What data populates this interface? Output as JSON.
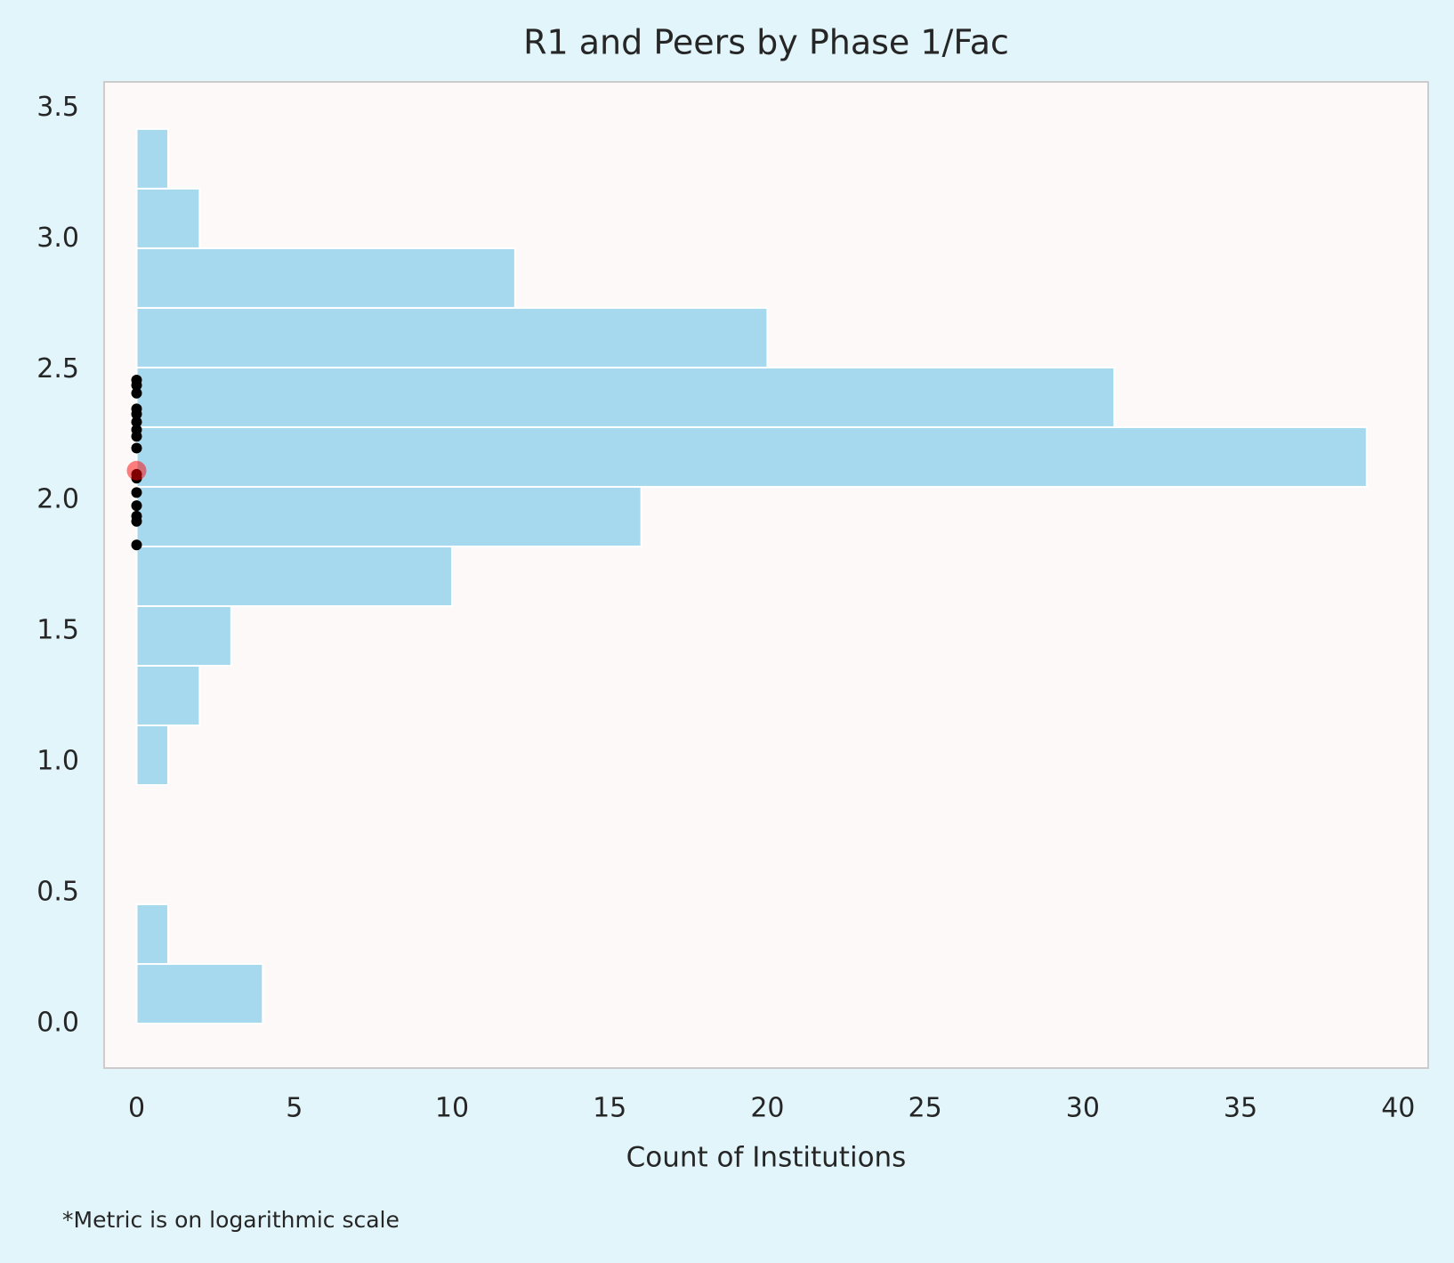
{
  "chart_data": {
    "type": "histogram",
    "orientation": "horizontal",
    "title": "R1 and Peers by Phase 1/Fac",
    "xlabel": "Count of Institutions",
    "footnote": "*Metric is on logarithmic scale",
    "bins": [
      0,
      0.228,
      0.456,
      0.684,
      0.912,
      1.14,
      1.368,
      1.596,
      1.824,
      2.052,
      2.28,
      2.508,
      2.736,
      2.964,
      3.192,
      3.42
    ],
    "counts": [
      4,
      1,
      0,
      0,
      1,
      2,
      3,
      10,
      16,
      39,
      31,
      20,
      12,
      2,
      1
    ],
    "color": "#a6d9ee",
    "points": {
      "x": [
        0,
        0,
        0,
        0,
        0,
        0,
        0,
        0,
        0,
        0,
        0,
        0,
        0,
        0,
        0,
        0
      ],
      "y": [
        2.46,
        2.44,
        2.41,
        2.35,
        2.33,
        2.3,
        2.27,
        2.245,
        2.2,
        2.1,
        2.085,
        2.03,
        1.98,
        1.94,
        1.92,
        1.83
      ],
      "color": "#000000"
    },
    "highlight": {
      "x": 0,
      "y": 2.114,
      "color": "#ff0000"
    },
    "xlim": [
      -1.03,
      40.95
    ],
    "ylim": [
      -0.17,
      3.6
    ],
    "xticks": [
      0,
      5,
      10,
      15,
      20,
      25,
      30,
      35,
      40
    ],
    "yticks": [
      {
        "value": 0,
        "label": "0.0"
      },
      0.5,
      {
        "value": 1,
        "label": "1.0"
      },
      1.5,
      {
        "value": 2,
        "label": "2.0"
      },
      2.5,
      {
        "value": 3,
        "label": "3.0"
      },
      3.5
    ],
    "grid": false
  }
}
